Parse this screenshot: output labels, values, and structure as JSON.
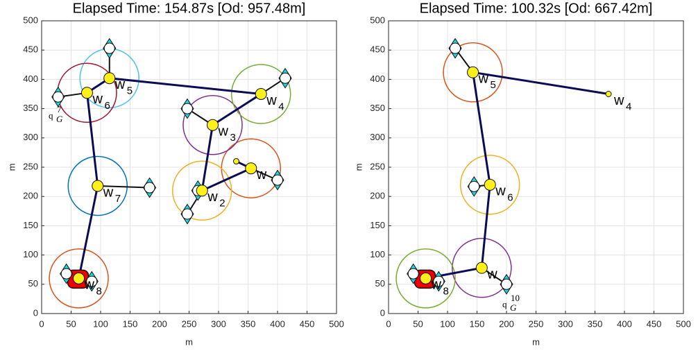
{
  "chart_data": [
    {
      "type": "route",
      "title": "Elapsed Time: 154.87s  [Od: 957.48m]",
      "x_label": "m",
      "y_label": "m",
      "xlim": [
        0,
        500
      ],
      "ylim": [
        0,
        500
      ],
      "xticks": [
        0,
        50,
        100,
        150,
        200,
        250,
        300,
        350,
        400,
        450,
        500
      ],
      "yticks": [
        0,
        50,
        100,
        150,
        200,
        250,
        300,
        350,
        400,
        450,
        500
      ],
      "grid": true,
      "path_color": "#0b0b55",
      "waypoints": [
        {
          "x": 330,
          "y": 260
        },
        {
          "x": 355,
          "y": 248,
          "r": 50,
          "color": "#D95319",
          "label": "w"
        },
        {
          "x": 272,
          "y": 210,
          "r": 50,
          "color": "#EDB120",
          "label": "w",
          "sub": "2"
        },
        {
          "x": 290,
          "y": 322,
          "r": 50,
          "color": "#7E2F8E",
          "label": "w",
          "sub": "3"
        },
        {
          "x": 372,
          "y": 375,
          "r": 50,
          "color": "#77AC30",
          "label": "w",
          "sub": "4"
        },
        {
          "x": 115,
          "y": 402,
          "r": 50,
          "color": "#4DBEEE",
          "label": "w",
          "sub": "5"
        },
        {
          "x": 77,
          "y": 377,
          "r": 50,
          "color": "#A2142F",
          "label": "w",
          "sub": "6"
        },
        {
          "x": 95,
          "y": 218,
          "r": 50,
          "color": "#0072BD",
          "label": "w",
          "sub": "7"
        },
        {
          "x": 63,
          "y": 60,
          "r": 50,
          "color": "#D95319",
          "label": "w",
          "sub": "8"
        }
      ],
      "sensors": [
        [
          115,
          453
        ],
        [
          28,
          370
        ],
        [
          247,
          350
        ],
        [
          413,
          402
        ],
        [
          183,
          215
        ],
        [
          400,
          228
        ],
        [
          247,
          170
        ],
        [
          265,
          210
        ],
        [
          42,
          68
        ],
        [
          85,
          55
        ]
      ],
      "annotation": {
        "text": "q",
        "sub": "G",
        "sup": "7"
      }
    },
    {
      "type": "route",
      "title": "Elapsed Time: 100.32s  [Od: 667.42m]",
      "x_label": "m",
      "y_label": "m",
      "xlim": [
        0,
        500
      ],
      "ylim": [
        0,
        500
      ],
      "xticks": [
        0,
        50,
        100,
        150,
        200,
        250,
        300,
        350,
        400,
        450,
        500
      ],
      "yticks": [
        0,
        50,
        100,
        150,
        200,
        250,
        300,
        350,
        400,
        450,
        500
      ],
      "grid": true,
      "path_color": "#0b0b55",
      "waypoints": [
        {
          "x": 373,
          "y": 375,
          "label": "w",
          "sub": "4"
        },
        {
          "x": 143,
          "y": 412,
          "r": 50,
          "color": "#D95319",
          "label": "w",
          "sub": "5"
        },
        {
          "x": 172,
          "y": 220,
          "r": 50,
          "color": "#EDB120",
          "label": "w",
          "sub": "6"
        },
        {
          "x": 158,
          "y": 78,
          "r": 50,
          "color": "#7E2F8E",
          "label": "w"
        },
        {
          "x": 63,
          "y": 60,
          "r": 50,
          "color": "#77AC30",
          "label": "w",
          "sub": "8"
        }
      ],
      "sensors": [
        [
          113,
          453
        ],
        [
          145,
          217
        ],
        [
          200,
          50
        ],
        [
          42,
          68
        ],
        [
          85,
          55
        ]
      ],
      "annotation": {
        "text": "q",
        "sub": "G",
        "sup": "10"
      }
    }
  ]
}
